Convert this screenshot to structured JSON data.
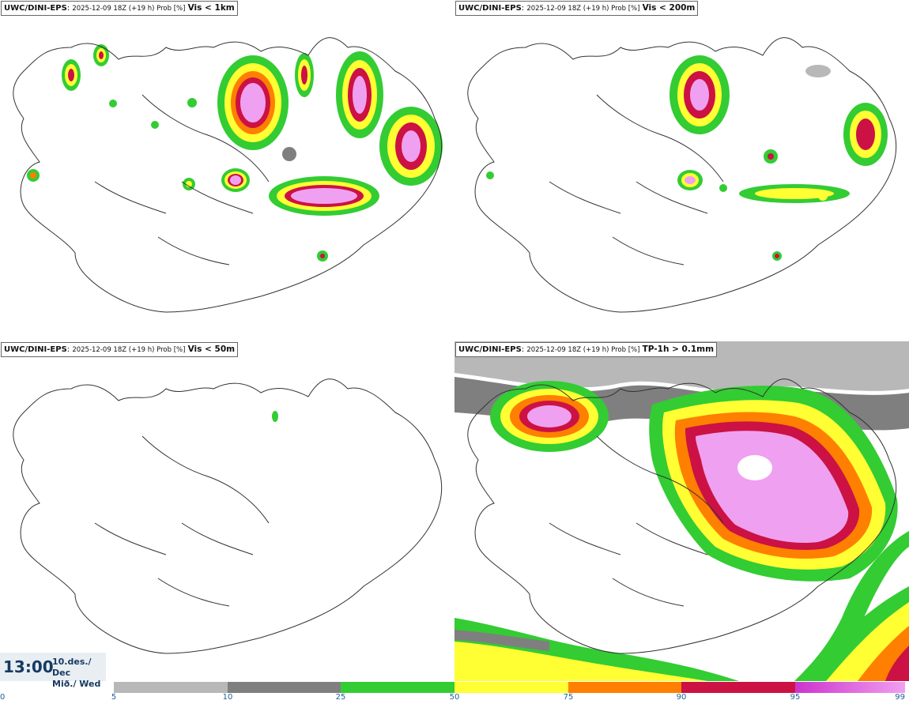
{
  "panels": [
    {
      "model": "UWC/DINI-EPS",
      "run": "2025-12-09 18Z (+19 h) Prob [%]",
      "variable": "Vis < 1km"
    },
    {
      "model": "UWC/DINI-EPS",
      "run": "2025-12-09 18Z (+19 h) Prob [%]",
      "variable": "Vis < 200m"
    },
    {
      "model": "UWC/DINI-EPS",
      "run": "2025-12-09 18Z (+19 h) Prob [%]",
      "variable": "Vis < 50m"
    },
    {
      "model": "UWC/DINI-EPS",
      "run": "2025-12-09 18Z (+19 h) Prob [%]",
      "variable": "TP-1h > 0.1mm"
    }
  ],
  "valid_time": {
    "time": "13:00",
    "date_line1": "10.des./ Dec",
    "date_line2": "Mið./ Wed"
  },
  "colorbar": {
    "ticks": [
      "0",
      "5",
      "10",
      "25",
      "50",
      "75",
      "90",
      "95",
      "99"
    ],
    "colors": [
      "#ffffff",
      "#b8b8b8",
      "#7f7f7f",
      "#33cc33",
      "#ffff33",
      "#ff7f00",
      "#cc1144",
      "#cc33cc",
      "#f0a0f0"
    ]
  }
}
